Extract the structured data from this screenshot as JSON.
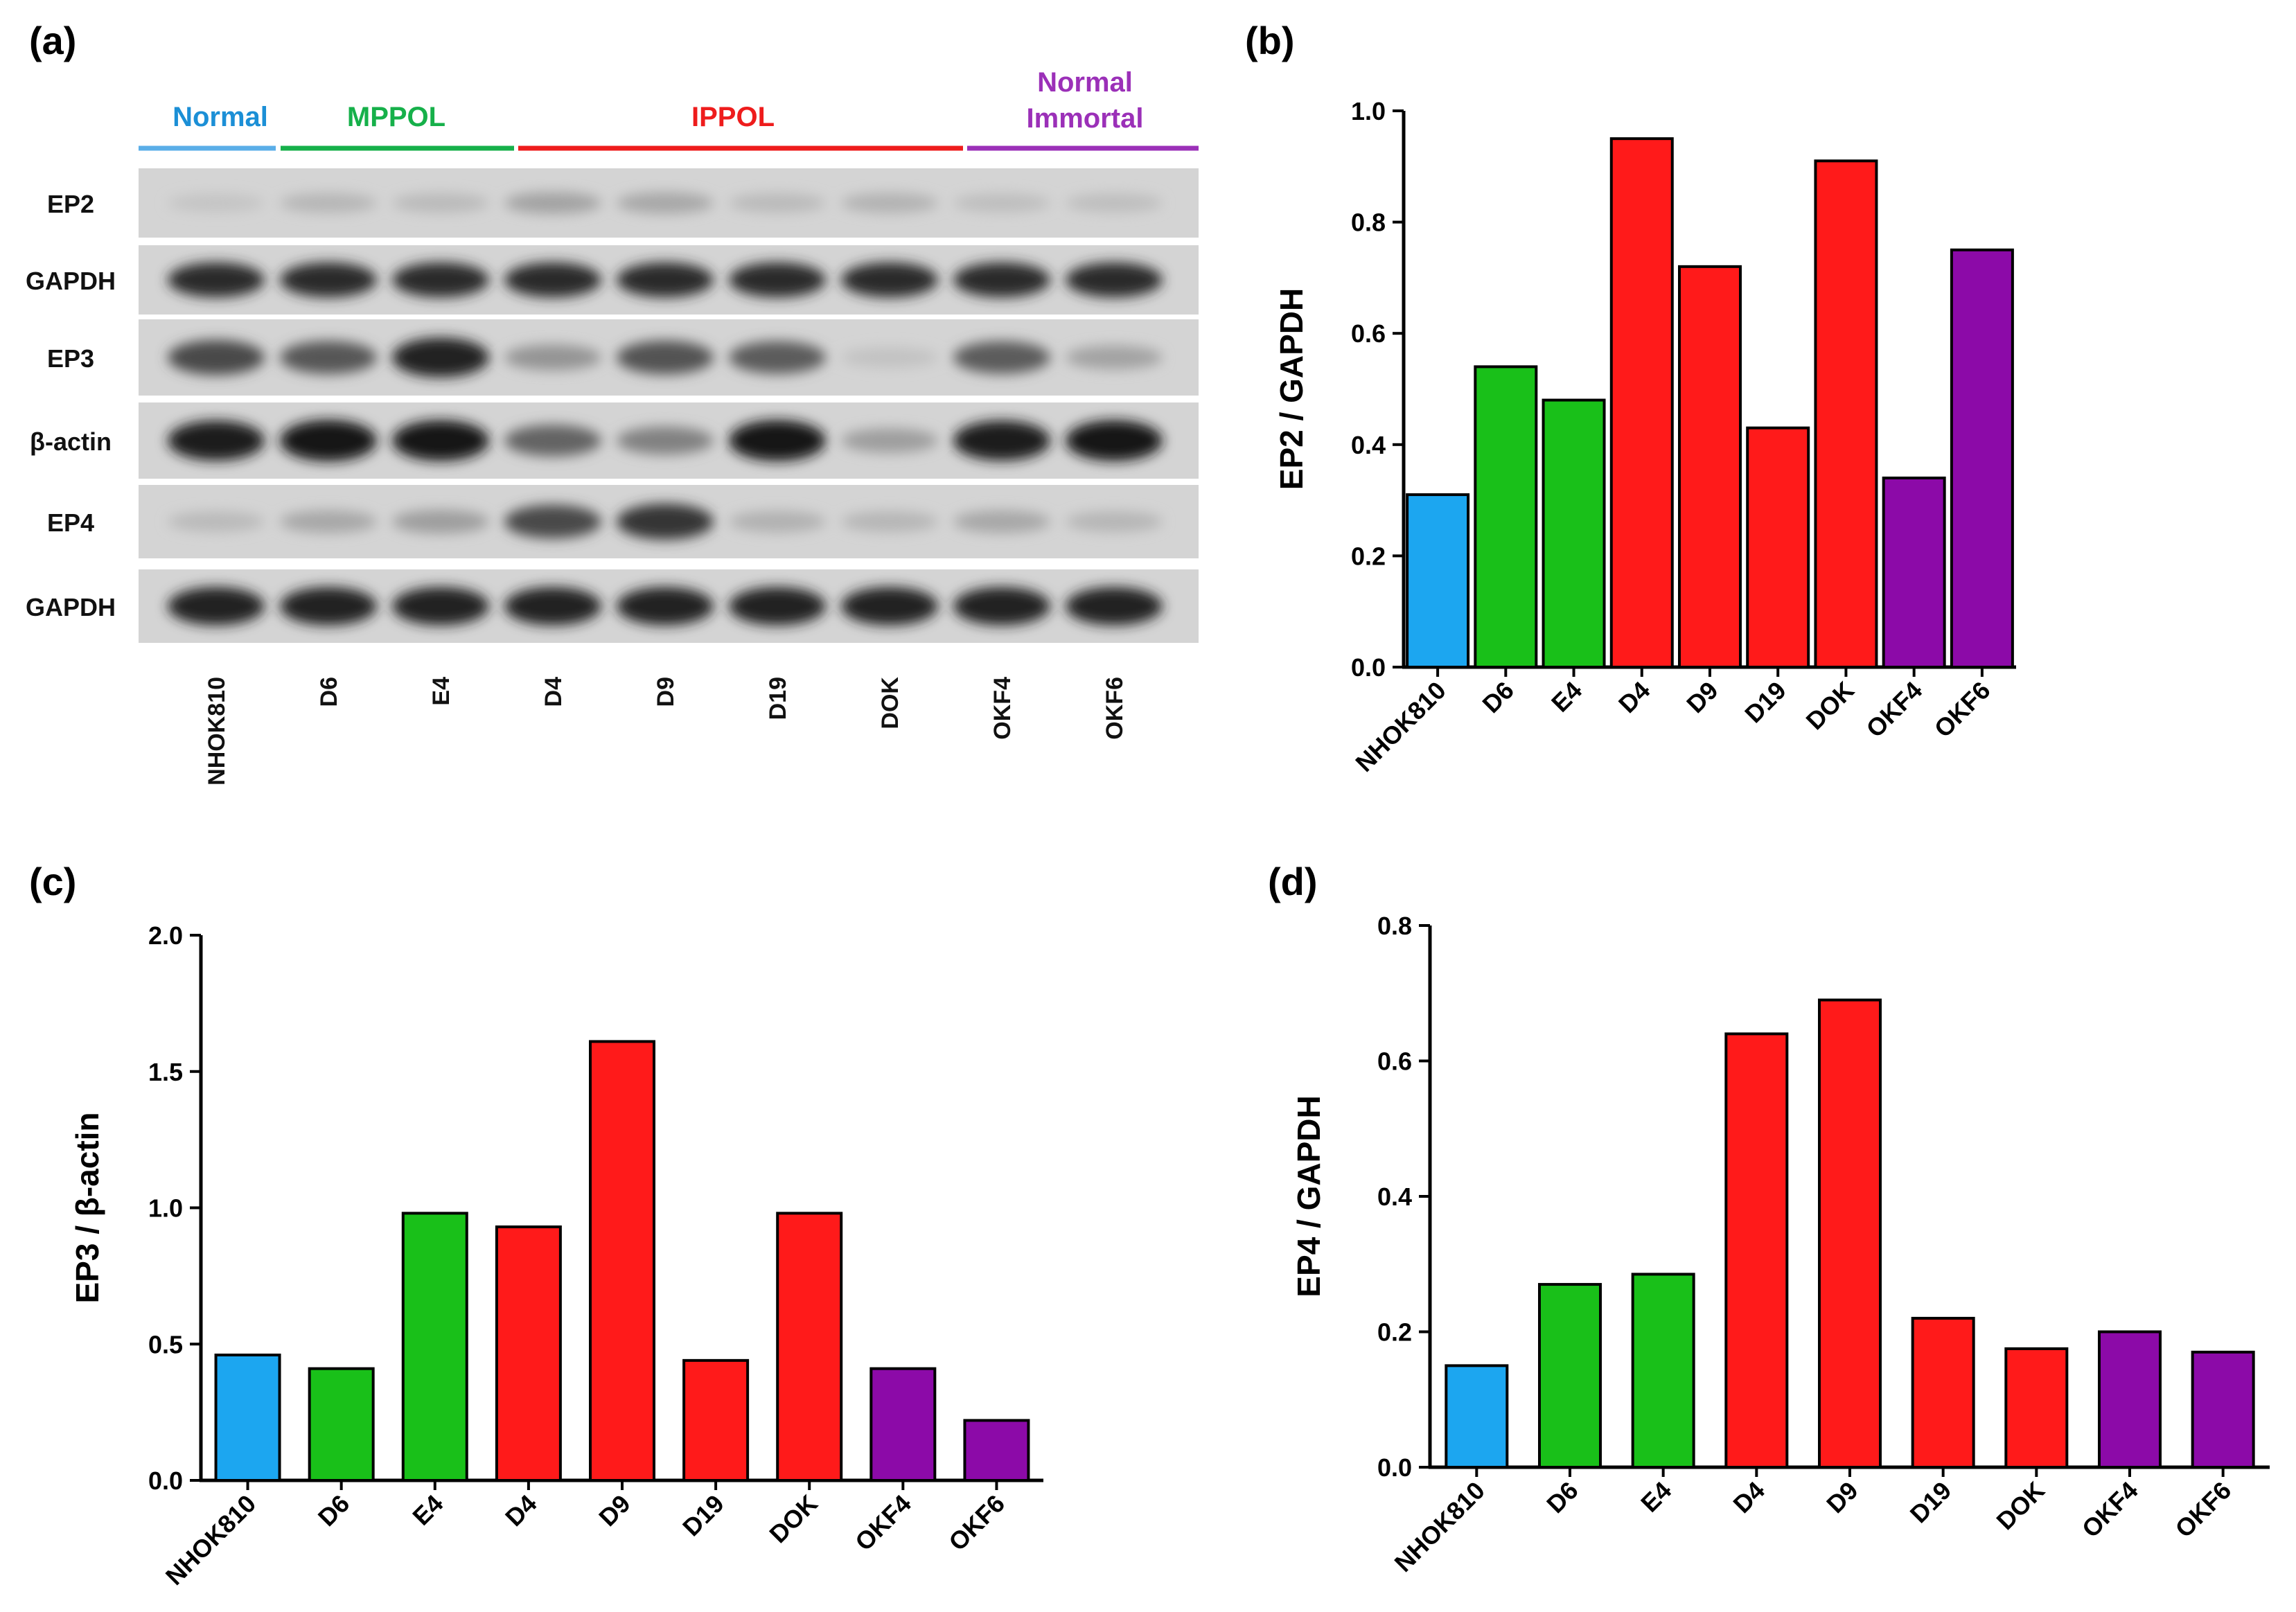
{
  "colors": {
    "normal": "#1ca6f0",
    "mppol": "#19c019",
    "ippol": "#ff1a1a",
    "immortal": "#8c0aa8"
  },
  "panel_labels": {
    "a": "(a)",
    "b": "(b)",
    "c": "(c)",
    "d": "(d)"
  },
  "blot": {
    "groups": [
      {
        "label": "Normal",
        "color": "#1b8fd6",
        "line": "#5aaee8"
      },
      {
        "label": "MPPOL",
        "color": "#16b04a",
        "line": "#16b04a"
      },
      {
        "label": "IPPOL",
        "color": "#ee1c1c",
        "line": "#ee1c1c"
      },
      {
        "label": "Normal Immortal",
        "lines": [
          "Normal",
          "Immortal"
        ],
        "color": "#9b30b8",
        "line": "#9b30b8"
      }
    ],
    "row_labels": [
      "EP2",
      "GAPDH",
      "EP3",
      "β-actin",
      "EP4",
      "GAPDH"
    ],
    "lanes": [
      "NHOK810",
      "D6",
      "E4",
      "D4",
      "D9",
      "D19",
      "DOK",
      "OKF4",
      "OKF6"
    ],
    "band_intensity": {
      "EP2": [
        0.05,
        0.12,
        0.1,
        0.22,
        0.2,
        0.1,
        0.14,
        0.08,
        0.08
      ],
      "GAPDH": [
        0.85,
        0.85,
        0.85,
        0.85,
        0.85,
        0.85,
        0.85,
        0.85,
        0.85
      ],
      "EP3": [
        0.7,
        0.62,
        0.9,
        0.3,
        0.65,
        0.6,
        0.06,
        0.6,
        0.22
      ],
      "β-actin": [
        0.92,
        0.98,
        0.95,
        0.55,
        0.4,
        0.96,
        0.25,
        0.92,
        0.95
      ],
      "EP4": [
        0.1,
        0.2,
        0.25,
        0.7,
        0.8,
        0.15,
        0.12,
        0.2,
        0.12
      ],
      "GAPDH2": [
        0.9,
        0.9,
        0.9,
        0.9,
        0.9,
        0.9,
        0.9,
        0.9,
        0.9
      ]
    }
  },
  "chart_data": [
    {
      "id": "b",
      "type": "bar",
      "title": "",
      "xlabel": "",
      "ylabel": "EP2 / GAPDH",
      "categories": [
        "NHOK810",
        "D6",
        "E4",
        "D4",
        "D9",
        "D19",
        "DOK",
        "OKF4",
        "OKF6"
      ],
      "values": [
        0.31,
        0.54,
        0.48,
        0.95,
        0.72,
        0.43,
        0.91,
        0.34,
        0.75
      ],
      "bar_groups": [
        "normal",
        "mppol",
        "mppol",
        "ippol",
        "ippol",
        "ippol",
        "ippol",
        "immortal",
        "immortal"
      ],
      "ylim": [
        0,
        1.0
      ],
      "yticks": [
        0.0,
        0.2,
        0.4,
        0.6,
        0.8,
        1.0
      ],
      "ytick_labels": [
        "0.0",
        "0.2",
        "0.4",
        "0.6",
        "0.8",
        "1.0"
      ],
      "grid": false
    },
    {
      "id": "c",
      "type": "bar",
      "title": "",
      "xlabel": "",
      "ylabel": "EP3 / β-actin",
      "categories": [
        "NHOK810",
        "D6",
        "E4",
        "D4",
        "D9",
        "D19",
        "DOK",
        "OKF4",
        "OKF6"
      ],
      "values": [
        0.46,
        0.41,
        0.98,
        0.93,
        1.61,
        0.44,
        0.98,
        0.41,
        0.22
      ],
      "bar_groups": [
        "normal",
        "mppol",
        "mppol",
        "ippol",
        "ippol",
        "ippol",
        "ippol",
        "immortal",
        "immortal"
      ],
      "ylim": [
        0,
        2.0
      ],
      "yticks": [
        0.0,
        0.5,
        1.0,
        1.5,
        2.0
      ],
      "ytick_labels": [
        "0.0",
        "0.5",
        "1.0",
        "1.5",
        "2.0"
      ],
      "grid": false
    },
    {
      "id": "d",
      "type": "bar",
      "title": "",
      "xlabel": "",
      "ylabel": "EP4 / GAPDH",
      "categories": [
        "NHOK810",
        "D6",
        "E4",
        "D4",
        "D9",
        "D19",
        "DOK",
        "OKF4",
        "OKF6"
      ],
      "values": [
        0.15,
        0.27,
        0.285,
        0.64,
        0.69,
        0.22,
        0.175,
        0.2,
        0.17
      ],
      "bar_groups": [
        "normal",
        "mppol",
        "mppol",
        "ippol",
        "ippol",
        "ippol",
        "ippol",
        "immortal",
        "immortal"
      ],
      "ylim": [
        0,
        0.8
      ],
      "yticks": [
        0.0,
        0.2,
        0.4,
        0.6,
        0.8
      ],
      "ytick_labels": [
        "0.0",
        "0.2",
        "0.4",
        "0.6",
        "0.8"
      ],
      "grid": false
    }
  ]
}
